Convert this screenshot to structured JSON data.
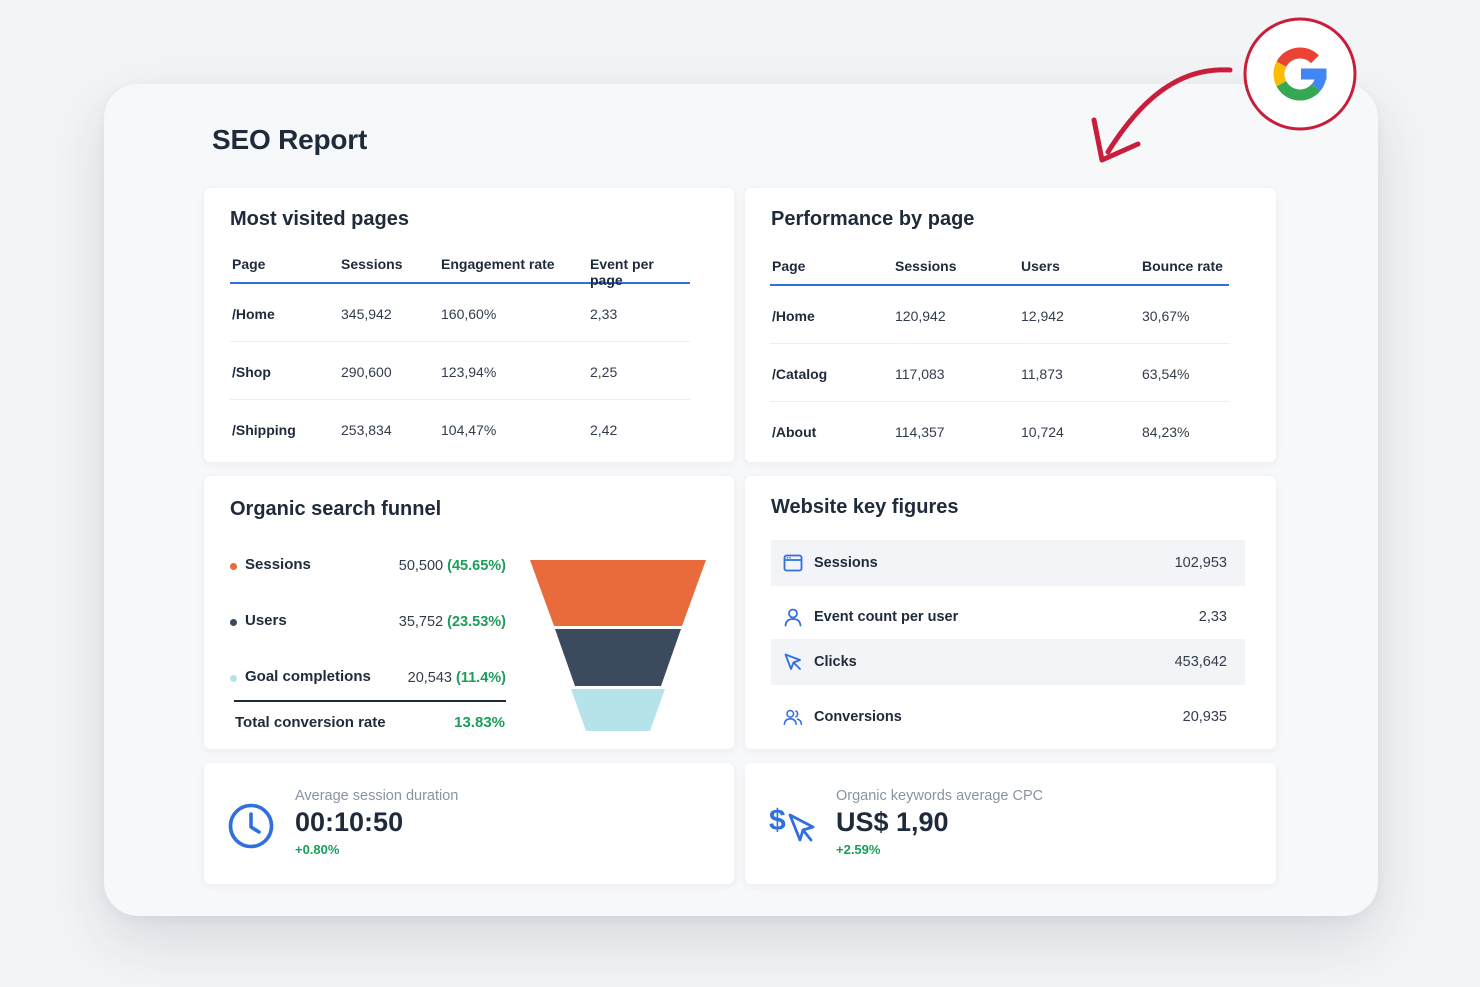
{
  "report": {
    "title": "SEO Report"
  },
  "most_visited": {
    "title": "Most visited pages",
    "headers": [
      "Page",
      "Sessions",
      "Engagement rate",
      "Event per page"
    ],
    "rows": [
      [
        "/Home",
        "345,942",
        "160,60%",
        "2,33"
      ],
      [
        "/Shop",
        "290,600",
        "123,94%",
        "2,25"
      ],
      [
        "/Shipping",
        "253,834",
        "104,47%",
        "2,42"
      ]
    ]
  },
  "performance": {
    "title": "Performance by page",
    "headers": [
      "Page",
      "Sessions",
      "Users",
      "Bounce rate"
    ],
    "rows": [
      [
        "/Home",
        "120,942",
        "12,942",
        "30,67%"
      ],
      [
        "/Catalog",
        "117,083",
        "11,873",
        "63,54%"
      ],
      [
        "/About",
        "114,357",
        "10,724",
        "84,23%"
      ]
    ]
  },
  "funnel": {
    "title": "Organic search funnel",
    "stages": [
      {
        "label": "Sessions",
        "value": "50,500",
        "pct": "(45.65%)",
        "color": "#e96a3b"
      },
      {
        "label": "Users",
        "value": "35,752",
        "pct": "(23.53%)",
        "color": "#3b4a5c"
      },
      {
        "label": "Goal completions",
        "value": "20,543",
        "pct": "(11.4%)",
        "color": "#b6e3ea"
      }
    ],
    "total_label": "Total conversion rate",
    "total_value": "13.83%"
  },
  "key_figures": {
    "title": "Website key figures",
    "rows": [
      {
        "label": "Sessions",
        "value": "102,953",
        "icon": "browser-window-icon"
      },
      {
        "label": "Event count per user",
        "value": "2,33",
        "icon": "user-icon"
      },
      {
        "label": "Clicks",
        "value": "453,642",
        "icon": "cursor-icon"
      },
      {
        "label": "Conversions",
        "value": "20,935",
        "icon": "users-icon"
      }
    ]
  },
  "avg_session": {
    "label": "Average session duration",
    "value": "00:10:50",
    "change": "+0.80%",
    "icon": "clock-icon"
  },
  "avg_cpc": {
    "label": "Organic keywords average CPC",
    "value": "US$ 1,90",
    "change": "+2.59%",
    "icon": "dollar-cursor-icon"
  },
  "colors": {
    "accent": "#2f6fe0",
    "positive": "#1a9e5a",
    "badge_ring": "#c81e3c",
    "arrow": "#c81e3c"
  }
}
